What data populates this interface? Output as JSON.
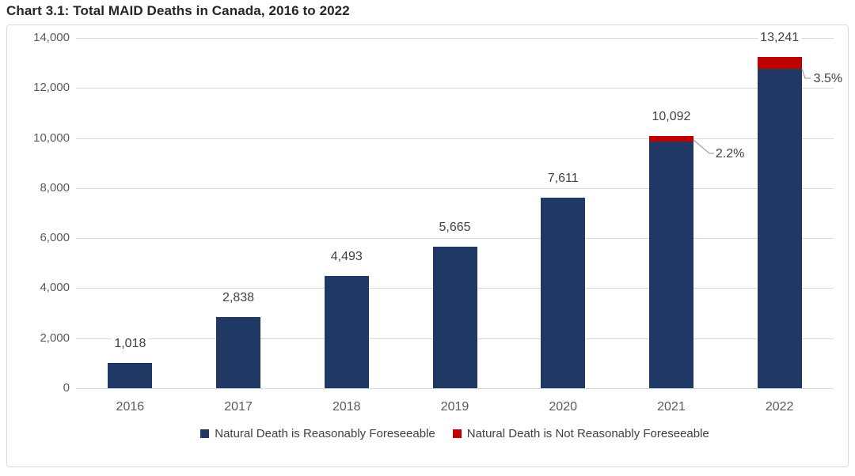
{
  "colors": {
    "navy": "#1F3864",
    "red": "#C00000",
    "gridline": "#D9D9D9",
    "frame_border": "#D9D9D9",
    "axis_text": "#595959",
    "value_text": "#404040",
    "title_text": "#262626",
    "leader_line": "#A6A6A6",
    "background": "#FFFFFF"
  },
  "chart_data": {
    "type": "bar",
    "stacked": true,
    "title": "Chart 3.1: Total MAID Deaths in Canada, 2016 to 2022",
    "categories": [
      "2016",
      "2017",
      "2018",
      "2019",
      "2020",
      "2021",
      "2022"
    ],
    "totals": [
      1018,
      2838,
      4493,
      5665,
      7611,
      10092,
      13241
    ],
    "total_labels": [
      "1,018",
      "2,838",
      "4,493",
      "5,665",
      "7,611",
      "10,092",
      "13,241"
    ],
    "series": [
      {
        "name": "Natural Death is Reasonably Foreseeable",
        "color_key": "navy"
      },
      {
        "name": "Natural Death is Not Reasonably Foreseeable",
        "color_key": "red"
      }
    ],
    "nrf_percent": [
      null,
      null,
      null,
      null,
      null,
      2.2,
      3.5
    ],
    "annotations": [
      {
        "category": "2021",
        "label": "2.2%"
      },
      {
        "category": "2022",
        "label": "3.5%"
      }
    ],
    "ylim": [
      0,
      14000
    ],
    "yticks": [
      0,
      2000,
      4000,
      6000,
      8000,
      10000,
      12000,
      14000
    ],
    "ytick_labels": [
      "0",
      "2,000",
      "4,000",
      "6,000",
      "8,000",
      "10,000",
      "12,000",
      "14,000"
    ],
    "xlabel": "",
    "ylabel": "",
    "grid": true,
    "legend_position": "bottom"
  }
}
